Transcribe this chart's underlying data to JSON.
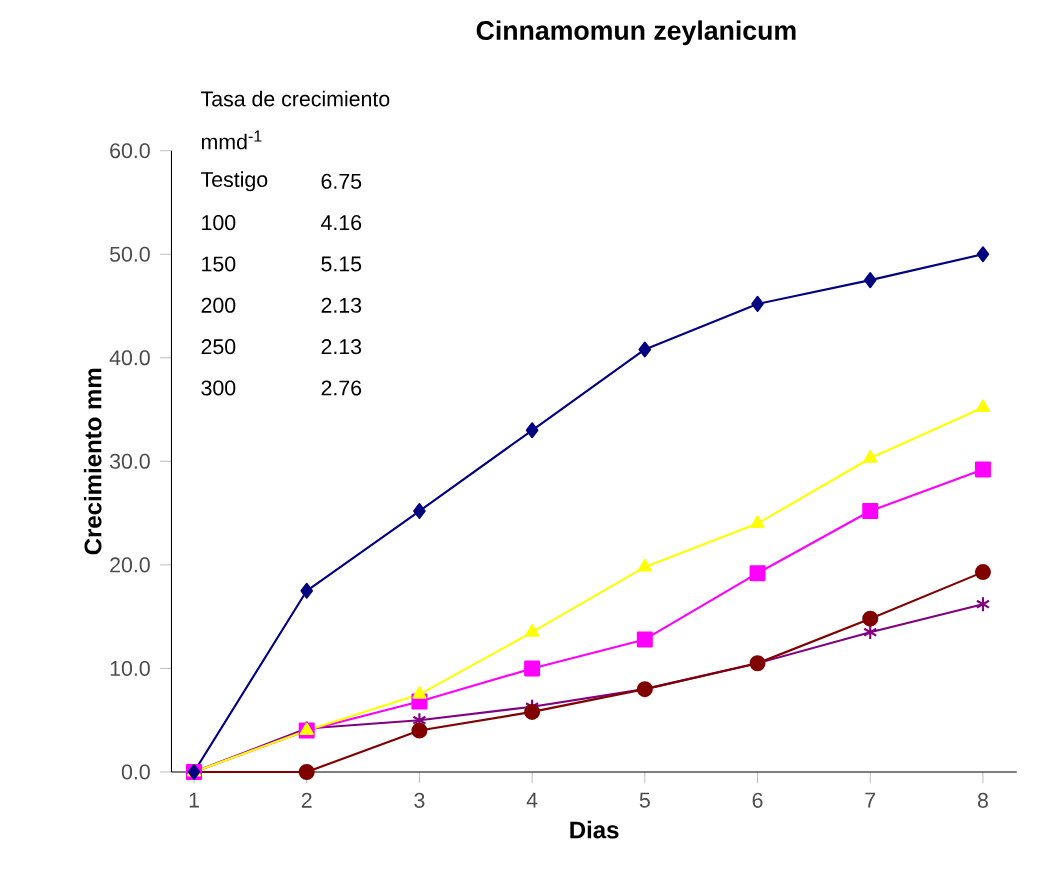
{
  "chart_data": {
    "type": "line",
    "title": "Cinnamomun zeylanicum",
    "xlabel": "Dias",
    "ylabel": "Crecimiento mm",
    "categories": [
      "1",
      "2",
      "3",
      "4",
      "5",
      "6",
      "7",
      "8"
    ],
    "series": [
      {
        "color": "#000080",
        "marker": "diamond",
        "values": [
          0,
          17.5,
          25.2,
          33.0,
          40.8,
          45.2,
          47.5,
          50.0
        ]
      },
      {
        "color": "#ffff00",
        "marker": "triangle",
        "values": [
          0,
          4.0,
          7.5,
          13.5,
          19.8,
          24.0,
          30.3,
          35.2
        ]
      },
      {
        "color": "#ff00ff",
        "marker": "square",
        "values": [
          0,
          4.0,
          6.8,
          10.0,
          12.8,
          19.2,
          25.2,
          29.2
        ]
      },
      {
        "color": "#800000",
        "marker": "circle",
        "values": [
          0,
          0,
          4.0,
          5.8,
          8.0,
          10.5,
          14.8,
          19.3
        ]
      },
      {
        "color": "#800080",
        "marker": "cross",
        "values": [
          0,
          4.2,
          5.0,
          6.3,
          8.0,
          10.5,
          13.5,
          16.2
        ]
      }
    ],
    "ylim": [
      0,
      60
    ],
    "yticks": [
      {
        "value": 0,
        "label": "0.0"
      },
      {
        "value": 10,
        "label": "10.0"
      },
      {
        "value": 20,
        "label": "20.0"
      },
      {
        "value": 30,
        "label": "30.0"
      },
      {
        "value": 40,
        "label": "40.0"
      },
      {
        "value": 50,
        "label": "50.0"
      },
      {
        "value": 60,
        "label": "60.0"
      }
    ],
    "grid": false,
    "line_style": "solid",
    "annotations": [
      "Tasa de crecimiento",
      "mmd$^{-1}$",
      "Testigo",
      "6.75",
      "100",
      "4.16",
      "150",
      "5.15",
      "200",
      "2.13",
      "250",
      "2.13",
      "300",
      "2.76"
    ]
  }
}
